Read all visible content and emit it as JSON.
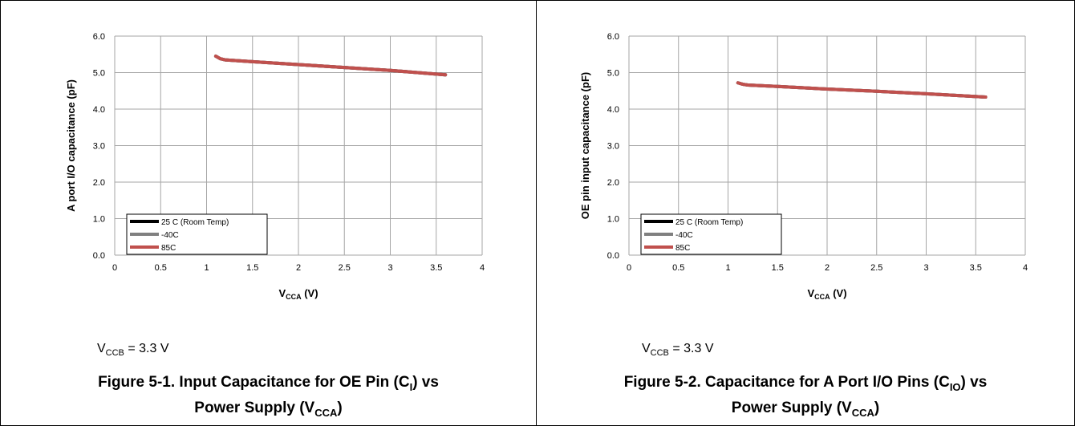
{
  "chart_data": [
    {
      "type": "line",
      "ylabel": "A port I/O capacitance  (pF)",
      "xlabel_main": "V",
      "xlabel_sub": "CCA",
      "xlabel_unit": " (V)",
      "xlim": [
        0,
        4
      ],
      "ylim": [
        0,
        6
      ],
      "x_ticks": [
        "0",
        "0.5",
        "1",
        "1.5",
        "2",
        "2.5",
        "3",
        "3.5",
        "4"
      ],
      "y_ticks": [
        "0.0",
        "1.0",
        "2.0",
        "3.0",
        "4.0",
        "5.0",
        "6.0"
      ],
      "grid": true,
      "legend_position": "bottom-left",
      "series": [
        {
          "name": "25 C (Room Temp)",
          "color": "#000000",
          "x": [
            1.1,
            1.15,
            1.2,
            1.5,
            2.0,
            2.5,
            3.0,
            3.6
          ],
          "y": [
            5.45,
            5.38,
            5.35,
            5.3,
            5.22,
            5.14,
            5.06,
            4.94
          ]
        },
        {
          "name": "-40C",
          "color": "#808080",
          "x": [
            1.1,
            1.15,
            1.2,
            1.5,
            2.0,
            2.5,
            3.0,
            3.6
          ],
          "y": [
            5.45,
            5.38,
            5.35,
            5.3,
            5.22,
            5.14,
            5.06,
            4.94
          ]
        },
        {
          "name": "85C",
          "color": "#c0504d",
          "x": [
            1.1,
            1.15,
            1.2,
            1.5,
            2.0,
            2.5,
            3.0,
            3.6
          ],
          "y": [
            5.45,
            5.38,
            5.35,
            5.3,
            5.22,
            5.14,
            5.06,
            4.94
          ]
        }
      ]
    },
    {
      "type": "line",
      "ylabel": "OE pin input capacitance  (pF)",
      "xlabel_main": "V",
      "xlabel_sub": "CCA",
      "xlabel_unit": " (V)",
      "xlim": [
        0,
        4
      ],
      "ylim": [
        0,
        6
      ],
      "x_ticks": [
        "0",
        "0.5",
        "1",
        "1.5",
        "2",
        "2.5",
        "3",
        "3.5",
        "4"
      ],
      "y_ticks": [
        "0.0",
        "1.0",
        "2.0",
        "3.0",
        "4.0",
        "5.0",
        "6.0"
      ],
      "grid": true,
      "legend_position": "bottom-left",
      "series": [
        {
          "name": "25 C (Room Temp)",
          "color": "#000000",
          "x": [
            1.1,
            1.15,
            1.2,
            1.5,
            2.0,
            2.5,
            3.0,
            3.6
          ],
          "y": [
            4.72,
            4.68,
            4.66,
            4.62,
            4.55,
            4.49,
            4.42,
            4.33
          ]
        },
        {
          "name": "-40C",
          "color": "#808080",
          "x": [
            1.1,
            1.15,
            1.2,
            1.5,
            2.0,
            2.5,
            3.0,
            3.6
          ],
          "y": [
            4.72,
            4.68,
            4.66,
            4.62,
            4.55,
            4.49,
            4.42,
            4.33
          ]
        },
        {
          "name": "85C",
          "color": "#c0504d",
          "x": [
            1.1,
            1.15,
            1.2,
            1.5,
            2.0,
            2.5,
            3.0,
            3.6
          ],
          "y": [
            4.72,
            4.68,
            4.66,
            4.62,
            4.55,
            4.49,
            4.42,
            4.33
          ]
        }
      ]
    }
  ],
  "panels": [
    {
      "note_main": "V",
      "note_sub": "CCB",
      "note_rest": " = 3.3 V",
      "caption_line1_pre": "Figure 5-1. Input Capacitance for OE Pin (C",
      "caption_line1_sub": "I",
      "caption_line1_post": ") vs",
      "caption_line2_pre": "Power Supply (V",
      "caption_line2_sub": "CCA",
      "caption_line2_post": ")"
    },
    {
      "note_main": "V",
      "note_sub": "CCB",
      "note_rest": " = 3.3 V",
      "caption_line1_pre": "Figure 5-2. Capacitance for A Port I/O Pins (C",
      "caption_line1_sub": "IO",
      "caption_line1_post": ") vs",
      "caption_line2_pre": "Power Supply (V",
      "caption_line2_sub": "CCA",
      "caption_line2_post": ")"
    }
  ]
}
